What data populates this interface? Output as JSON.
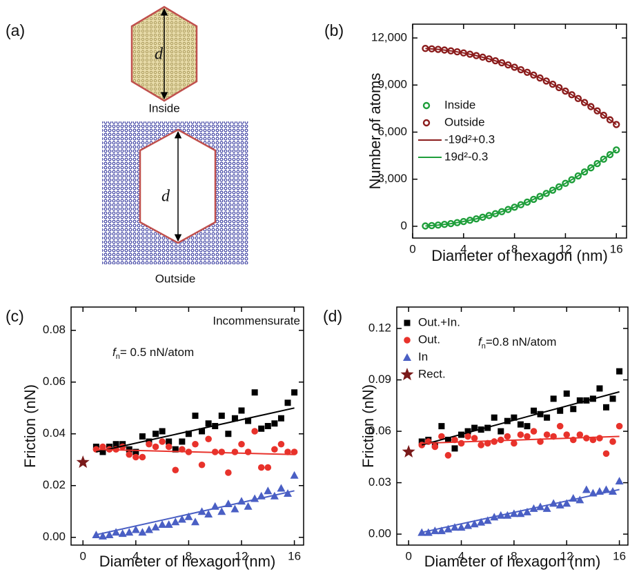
{
  "panel_a": {
    "label": "(a)",
    "inside_label": "Inside",
    "outside_label": "Outside",
    "d_label": "d"
  },
  "chart_data": [
    {
      "type": "scatter",
      "panel": "(b)",
      "x_label": "Diameter of hexagon (nm)",
      "y_label": "Number of atoms",
      "xlim": [
        0,
        16.8
      ],
      "ylim": [
        -750,
        12880
      ],
      "xticks": [
        0,
        4,
        8,
        12,
        16
      ],
      "yticks": [
        0,
        {
          "value": 3000,
          "label": "3,000"
        },
        {
          "value": 6000,
          "label": "6,000"
        },
        {
          "value": 9000,
          "label": "9,000"
        },
        {
          "value": 12000,
          "label": "12,000"
        }
      ],
      "series": [
        {
          "name": "Inside",
          "color": "#1e9e3a",
          "marker": "open-circle",
          "x": [
            1,
            1.5,
            2,
            2.5,
            3,
            3.5,
            4,
            4.5,
            5,
            5.5,
            6,
            6.5,
            7,
            7.5,
            8,
            8.5,
            9,
            9.5,
            10,
            10.5,
            11,
            11.5,
            12,
            12.5,
            13,
            13.5,
            14,
            14.5,
            15,
            15.5,
            16
          ],
          "values": [
            19,
            43,
            76,
            119,
            171,
            233,
            304,
            385,
            475,
            575,
            684,
            803,
            931,
            1069,
            1216,
            1373,
            1539,
            1715,
            1900,
            2095,
            2299,
            2513,
            2736,
            2969,
            3211,
            3463,
            3724,
            3995,
            4275,
            4565,
            4864
          ]
        },
        {
          "name": "Outside",
          "color": "#8b1c1c",
          "marker": "open-circle",
          "x": [
            1,
            1.5,
            2,
            2.5,
            3,
            3.5,
            4,
            4.5,
            5,
            5.5,
            6,
            6.5,
            7,
            7.5,
            8,
            8.5,
            9,
            9.5,
            10,
            10.5,
            11,
            11.5,
            12,
            12.5,
            13,
            13.5,
            14,
            14.5,
            15,
            15.5,
            16
          ],
          "values": [
            11331,
            11307,
            11274,
            11231,
            11179,
            11117,
            11046,
            10965,
            10875,
            10775,
            10666,
            10547,
            10419,
            10281,
            10134,
            9977,
            9811,
            9635,
            9450,
            9255,
            9051,
            8837,
            8614,
            8381,
            8139,
            7887,
            7626,
            7355,
            7075,
            6785,
            6486
          ]
        },
        {
          "name": "-19d²+0.3",
          "color": "#8b1c1c",
          "marker": "line",
          "x": [
            1,
            2,
            3,
            4,
            5,
            6,
            7,
            8,
            9,
            10,
            11,
            12,
            13,
            14,
            15,
            16
          ],
          "values": [
            11331,
            11274,
            11179,
            11046,
            10875,
            10666,
            10419,
            10134,
            9811,
            9450,
            9051,
            8614,
            8139,
            7626,
            7075,
            6486
          ]
        },
        {
          "name": "19d²-0.3",
          "color": "#1e9e3a",
          "marker": "line",
          "x": [
            1,
            2,
            3,
            4,
            5,
            6,
            7,
            8,
            9,
            10,
            11,
            12,
            13,
            14,
            15,
            16
          ],
          "values": [
            19,
            76,
            171,
            304,
            475,
            684,
            931,
            1216,
            1539,
            1900,
            2299,
            2736,
            3211,
            3724,
            4275,
            4864
          ]
        }
      ]
    },
    {
      "type": "scatter",
      "panel": "(c)",
      "x_label": "Diameter of hexagon (nm)",
      "y_label": "Friction (nN)",
      "annotations": [
        "Incommensurate"
      ],
      "condition": {
        "symbol": "f",
        "subscript": "n",
        "text": "= 0.5 nN/atom"
      },
      "xlim": [
        -0.9,
        16.7
      ],
      "ylim": [
        -0.003,
        0.089
      ],
      "xticks": [
        0,
        4,
        8,
        12,
        16
      ],
      "yticks": [
        {
          "value": 0,
          "label": "0.00"
        },
        0.02,
        0.04,
        0.06,
        0.08
      ],
      "series": [
        {
          "color": "#000000",
          "marker": "square",
          "x": [
            1,
            1.5,
            2,
            2.5,
            3,
            3.5,
            4,
            4.5,
            5,
            5.5,
            6,
            6.5,
            7,
            7.5,
            8,
            8.5,
            9,
            9.5,
            10,
            10.5,
            11,
            11.5,
            12,
            12.5,
            13,
            13.5,
            14,
            14.5,
            15,
            15.5,
            16
          ],
          "values": [
            0.035,
            0.033,
            0.035,
            0.036,
            0.036,
            0.034,
            0.033,
            0.039,
            0.037,
            0.04,
            0.041,
            0.037,
            0.034,
            0.037,
            0.04,
            0.047,
            0.041,
            0.044,
            0.043,
            0.047,
            0.04,
            0.046,
            0.049,
            0.045,
            0.056,
            0.042,
            0.043,
            0.044,
            0.046,
            0.052,
            0.056
          ]
        },
        {
          "color": "#e8322b",
          "marker": "circle",
          "x": [
            1,
            1.5,
            2,
            2.5,
            3,
            3.5,
            4,
            4.5,
            5,
            5.5,
            6,
            6.5,
            7,
            7.5,
            8,
            8.5,
            9,
            9.5,
            10,
            10.5,
            11,
            11.5,
            12,
            12.5,
            13,
            13.5,
            14,
            14.5,
            15,
            15.5,
            16
          ],
          "values": [
            0.034,
            0.035,
            0.034,
            0.034,
            0.035,
            0.032,
            0.031,
            0.031,
            0.036,
            0.035,
            0.037,
            0.035,
            0.026,
            0.034,
            0.033,
            0.036,
            0.028,
            0.038,
            0.033,
            0.033,
            0.025,
            0.033,
            0.036,
            0.033,
            0.041,
            0.027,
            0.027,
            0.034,
            0.036,
            0.033,
            0.033
          ]
        },
        {
          "color": "#4a5fc4",
          "marker": "triangle",
          "x": [
            1,
            1.5,
            2,
            2.5,
            3,
            3.5,
            4,
            4.5,
            5,
            5.5,
            6,
            6.5,
            7,
            7.5,
            8,
            8.5,
            9,
            9.5,
            10,
            10.5,
            11,
            11.5,
            12,
            12.5,
            13,
            13.5,
            14,
            14.5,
            15,
            15.5,
            16
          ],
          "values": [
            0.001,
            0.0005,
            0.001,
            0.002,
            0.0015,
            0.002,
            0.003,
            0.002,
            0.003,
            0.004,
            0.005,
            0.005,
            0.006,
            0.007,
            0.008,
            0.006,
            0.01,
            0.009,
            0.012,
            0.01,
            0.013,
            0.011,
            0.014,
            0.012,
            0.015,
            0.016,
            0.018,
            0.016,
            0.019,
            0.017,
            0.024
          ]
        },
        {
          "color": "#7a1a1a",
          "marker": "star",
          "x": [
            0
          ],
          "values": [
            0.029
          ]
        },
        {
          "color": "#000000",
          "marker": "line",
          "x": [
            1,
            16
          ],
          "values": [
            0.033,
            0.05
          ]
        },
        {
          "color": "#e8322b",
          "marker": "line",
          "x": [
            1,
            16
          ],
          "values": [
            0.034,
            0.032
          ]
        },
        {
          "color": "#4a5fc4",
          "marker": "line",
          "x": [
            1,
            16
          ],
          "values": [
            0.001,
            0.018
          ]
        }
      ]
    },
    {
      "type": "scatter",
      "panel": "(d)",
      "x_label": "Diameter of hexagon (nm)",
      "y_label": "Friction (nN)",
      "condition": {
        "symbol": "f",
        "subscript": "n",
        "text": "=0.8 nN/atom"
      },
      "xlim": [
        -0.9,
        16.65
      ],
      "ylim": [
        -0.0064,
        0.1325
      ],
      "xticks": [
        0,
        4,
        8,
        12,
        16
      ],
      "yticks": [
        {
          "value": 0,
          "label": "0.00"
        },
        0.03,
        0.06,
        0.09,
        0.12
      ],
      "series": [
        {
          "name": "Out.+In.",
          "color": "#000000",
          "marker": "square",
          "x": [
            1,
            1.5,
            2,
            2.5,
            3,
            3.5,
            4,
            4.5,
            5,
            5.5,
            6,
            6.5,
            7,
            7.5,
            8,
            8.5,
            9,
            9.5,
            10,
            10.5,
            11,
            11.5,
            12,
            12.5,
            13,
            13.5,
            14,
            14.5,
            15,
            15.5,
            16
          ],
          "values": [
            0.054,
            0.055,
            0.052,
            0.063,
            0.055,
            0.05,
            0.058,
            0.06,
            0.062,
            0.061,
            0.062,
            0.068,
            0.06,
            0.066,
            0.068,
            0.064,
            0.063,
            0.072,
            0.07,
            0.068,
            0.079,
            0.072,
            0.082,
            0.073,
            0.078,
            0.078,
            0.079,
            0.085,
            0.074,
            0.079,
            0.095
          ]
        },
        {
          "name": "Out.",
          "color": "#e8322b",
          "marker": "circle",
          "x": [
            1,
            1.5,
            2,
            2.5,
            3,
            3.5,
            4,
            4.5,
            5,
            5.5,
            6,
            6.5,
            7,
            7.5,
            8,
            8.5,
            9,
            9.5,
            10,
            10.5,
            11,
            11.5,
            12,
            12.5,
            13,
            13.5,
            14,
            14.5,
            15,
            15.5,
            16
          ],
          "values": [
            0.052,
            0.054,
            0.051,
            0.057,
            0.046,
            0.055,
            0.053,
            0.057,
            0.056,
            0.052,
            0.053,
            0.054,
            0.055,
            0.057,
            0.053,
            0.058,
            0.057,
            0.06,
            0.054,
            0.058,
            0.057,
            0.063,
            0.058,
            0.055,
            0.058,
            0.056,
            0.055,
            0.056,
            0.047,
            0.054,
            0.063
          ]
        },
        {
          "name": "In",
          "color": "#4a5fc4",
          "marker": "triangle",
          "x": [
            1,
            1.5,
            2,
            2.5,
            3,
            3.5,
            4,
            4.5,
            5,
            5.5,
            6,
            6.5,
            7,
            7.5,
            8,
            8.5,
            9,
            9.5,
            10,
            10.5,
            11,
            11.5,
            12,
            12.5,
            13,
            13.5,
            14,
            14.5,
            15,
            15.5,
            16
          ],
          "values": [
            0.001,
            0.001,
            0.002,
            0.002,
            0.003,
            0.004,
            0.004,
            0.005,
            0.006,
            0.007,
            0.008,
            0.01,
            0.011,
            0.011,
            0.012,
            0.012,
            0.013,
            0.015,
            0.016,
            0.015,
            0.018,
            0.017,
            0.018,
            0.021,
            0.02,
            0.026,
            0.024,
            0.025,
            0.026,
            0.025,
            0.031
          ]
        },
        {
          "name": "Rect.",
          "color": "#7a1a1a",
          "marker": "star",
          "x": [
            0
          ],
          "values": [
            0.048
          ]
        },
        {
          "color": "#000000",
          "marker": "line",
          "x": [
            1,
            16
          ],
          "values": [
            0.052,
            0.083
          ]
        },
        {
          "color": "#e8322b",
          "marker": "line",
          "x": [
            1,
            16
          ],
          "values": [
            0.053,
            0.057
          ]
        },
        {
          "color": "#4a5fc4",
          "marker": "line",
          "x": [
            1,
            16
          ],
          "values": [
            0.001,
            0.026
          ]
        }
      ]
    }
  ]
}
